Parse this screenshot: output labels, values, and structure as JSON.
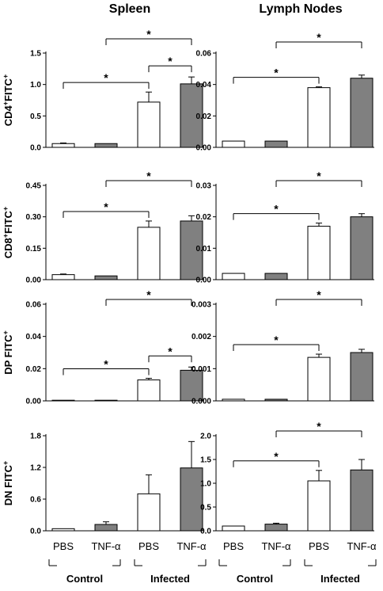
{
  "column_titles": [
    "Spleen",
    "Lymph Nodes"
  ],
  "row_labels": [
    {
      "main": "CD4",
      "sup1": "+",
      "mid": "FITC",
      "sup2": "+"
    },
    {
      "main": "CD8",
      "sup1": "+",
      "mid": "FITC",
      "sup2": "+"
    },
    {
      "main": "DP FITC",
      "sup1": "",
      "mid": "",
      "sup2": "+"
    },
    {
      "main": "DN  FITC",
      "sup1": "",
      "mid": "",
      "sup2": "+"
    }
  ],
  "x_categories": [
    "PBS",
    "TNF-α",
    "PBS",
    "TNF-α"
  ],
  "groups": [
    "Control",
    "Infected"
  ],
  "colors": {
    "white_bar": "#ffffff",
    "gray_bar": "#808080",
    "axis": "#000000"
  },
  "chart_data": [
    {
      "type": "bar",
      "title": "Spleen",
      "ylabel": "CD4+FITC+",
      "ylim": [
        0,
        1.5
      ],
      "yticks": [
        "0.0",
        "0.5",
        "1.0",
        "1.5"
      ],
      "categories": [
        "PBS",
        "TNF-α",
        "PBS",
        "TNF-α"
      ],
      "values": [
        0.06,
        0.06,
        0.72,
        1.01
      ],
      "errors": [
        0.01,
        0.0,
        0.16,
        0.11
      ],
      "significance": [
        {
          "from": 0,
          "to": 2,
          "label": "*"
        },
        {
          "from": 1,
          "to": 3,
          "label": "*"
        },
        {
          "from": 2,
          "to": 3,
          "label": "*"
        }
      ]
    },
    {
      "type": "bar",
      "title": "Lymph Nodes",
      "ylabel": "CD4+FITC+",
      "ylim": [
        0,
        0.06
      ],
      "yticks": [
        "0.00",
        "0.02",
        "0.04",
        "0.06"
      ],
      "categories": [
        "PBS",
        "TNF-α",
        "PBS",
        "TNF-α"
      ],
      "values": [
        0.004,
        0.004,
        0.038,
        0.044
      ],
      "errors": [
        0.0,
        0.0,
        0.0005,
        0.002
      ],
      "significance": [
        {
          "from": 0,
          "to": 2,
          "label": "*"
        },
        {
          "from": 1,
          "to": 3,
          "label": "*"
        }
      ]
    },
    {
      "type": "bar",
      "title": "Spleen",
      "ylabel": "CD8+FITC+",
      "ylim": [
        0,
        0.45
      ],
      "yticks": [
        "0.00",
        "0.15",
        "0.30",
        "0.45"
      ],
      "categories": [
        "PBS",
        "TNF-α",
        "PBS",
        "TNF-α"
      ],
      "values": [
        0.024,
        0.018,
        0.25,
        0.28
      ],
      "errors": [
        0.003,
        0.0,
        0.03,
        0.025
      ],
      "significance": [
        {
          "from": 0,
          "to": 2,
          "label": "*"
        },
        {
          "from": 1,
          "to": 3,
          "label": "*"
        }
      ]
    },
    {
      "type": "bar",
      "title": "Lymph Nodes",
      "ylabel": "CD8+FITC+",
      "ylim": [
        0,
        0.03
      ],
      "yticks": [
        "0.00",
        "0.01",
        "0.02",
        "0.03"
      ],
      "categories": [
        "PBS",
        "TNF-α",
        "PBS",
        "TNF-α"
      ],
      "values": [
        0.002,
        0.002,
        0.017,
        0.02
      ],
      "errors": [
        0.0,
        0.0,
        0.001,
        0.001
      ],
      "significance": [
        {
          "from": 0,
          "to": 2,
          "label": "*"
        },
        {
          "from": 1,
          "to": 3,
          "label": "*"
        }
      ]
    },
    {
      "type": "bar",
      "title": "Spleen",
      "ylabel": "DP FITC+",
      "ylim": [
        0,
        0.06
      ],
      "yticks": [
        "0.00",
        "0.02",
        "0.04",
        "0.06"
      ],
      "categories": [
        "PBS",
        "TNF-α",
        "PBS",
        "TNF-α"
      ],
      "values": [
        0.0,
        0.0,
        0.013,
        0.019
      ],
      "errors": [
        0.0,
        0.0,
        0.001,
        0.002
      ],
      "significance": [
        {
          "from": 0,
          "to": 2,
          "label": "*"
        },
        {
          "from": 1,
          "to": 3,
          "label": "*"
        },
        {
          "from": 2,
          "to": 3,
          "label": "*"
        }
      ]
    },
    {
      "type": "bar",
      "title": "Lymph Nodes",
      "ylabel": "DP FITC+",
      "ylim": [
        0,
        0.003
      ],
      "yticks": [
        "0.000",
        "0.001",
        "0.002",
        "0.003"
      ],
      "categories": [
        "PBS",
        "TNF-α",
        "PBS",
        "TNF-α"
      ],
      "values": [
        5e-05,
        5e-05,
        0.00135,
        0.0015
      ],
      "errors": [
        0.0,
        0.0,
        0.0001,
        0.0001
      ],
      "significance": [
        {
          "from": 0,
          "to": 2,
          "label": "*"
        },
        {
          "from": 1,
          "to": 3,
          "label": "*"
        }
      ]
    },
    {
      "type": "bar",
      "title": "Spleen",
      "ylabel": "DN FITC+",
      "ylim": [
        0,
        1.8
      ],
      "yticks": [
        "0.0",
        "0.6",
        "1.2",
        "1.8"
      ],
      "categories": [
        "PBS",
        "TNF-α",
        "PBS",
        "TNF-α"
      ],
      "values": [
        0.04,
        0.12,
        0.7,
        1.19
      ],
      "errors": [
        0.0,
        0.05,
        0.36,
        0.5
      ],
      "significance": []
    },
    {
      "type": "bar",
      "title": "Lymph Nodes",
      "ylabel": "DN FITC+",
      "ylim": [
        0,
        2.0
      ],
      "yticks": [
        "0.0",
        "0.5",
        "1.0",
        "1.5",
        "2.0"
      ],
      "categories": [
        "PBS",
        "TNF-α",
        "PBS",
        "TNF-α"
      ],
      "values": [
        0.1,
        0.14,
        1.05,
        1.28
      ],
      "errors": [
        0.0,
        0.02,
        0.22,
        0.22
      ],
      "significance": [
        {
          "from": 0,
          "to": 2,
          "label": "*"
        },
        {
          "from": 1,
          "to": 3,
          "label": "*"
        }
      ]
    }
  ]
}
